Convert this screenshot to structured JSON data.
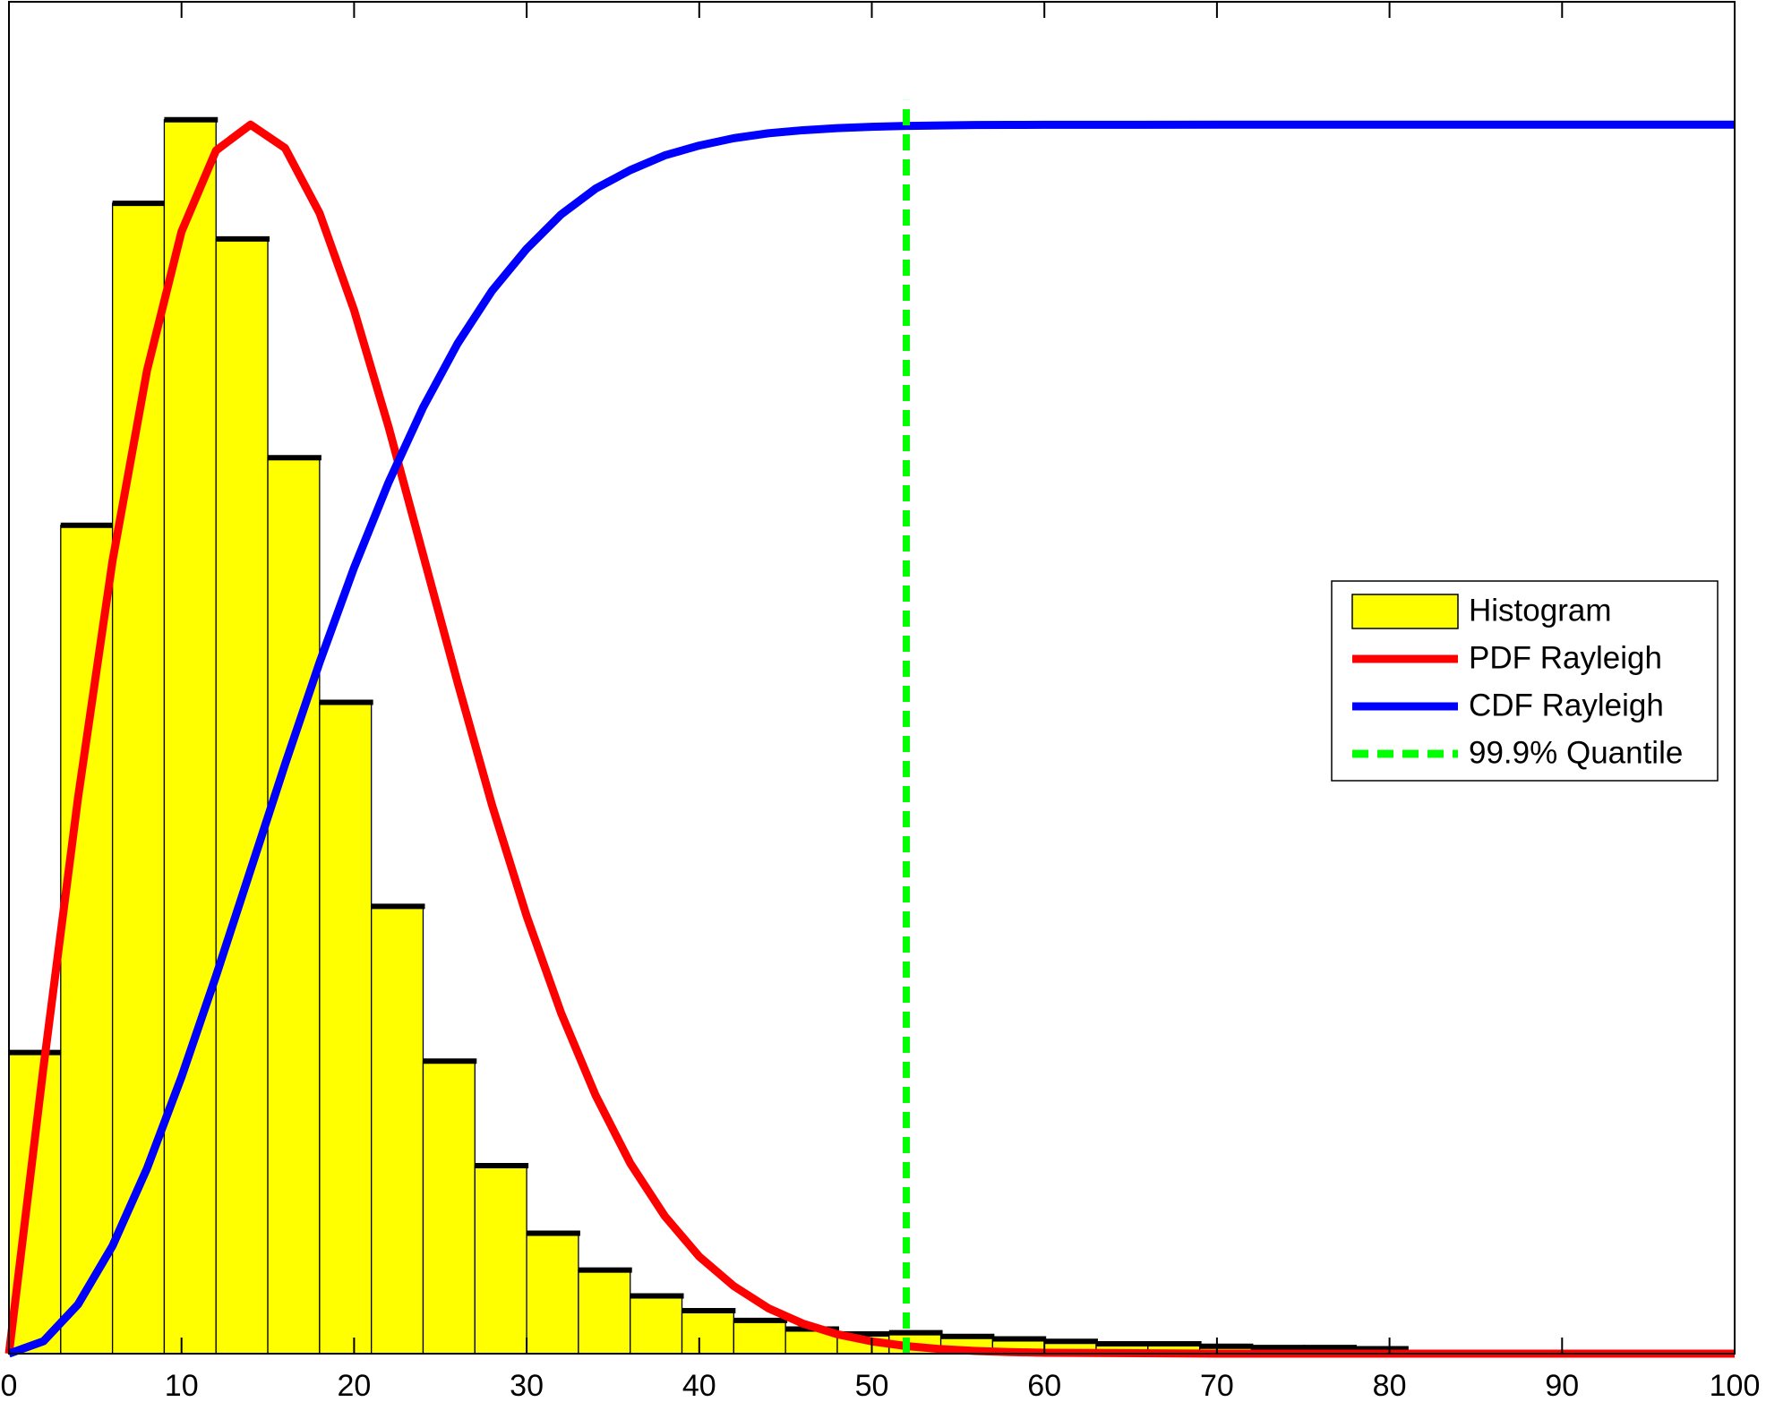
{
  "chart_data": {
    "type": "histogram",
    "name": "Histogram",
    "color": "#ffff00",
    "bins": [
      0,
      3,
      6,
      9,
      12,
      15,
      18,
      21,
      24,
      27,
      30,
      33,
      36,
      39,
      42,
      45,
      48,
      51,
      54,
      57,
      60,
      63,
      66,
      69,
      72,
      75,
      78,
      81
    ],
    "counts": [
      0.245,
      0.674,
      0.936,
      1.004,
      0.907,
      0.729,
      0.53,
      0.364,
      0.238,
      0.153,
      0.098,
      0.068,
      0.047,
      0.035,
      0.027,
      0.02,
      0.016,
      0.017,
      0.014,
      0.012,
      0.01,
      0.008,
      0.008,
      0.006,
      0.005,
      0.005,
      0.004
    ],
    "series": [
      {
        "name": "PDF Rayleigh",
        "color": "#ff0000",
        "x": [
          0,
          2,
          4,
          6,
          8,
          10,
          12,
          14,
          16,
          18,
          20,
          22,
          24,
          26,
          28,
          30,
          32,
          34,
          36,
          38,
          40,
          42,
          44,
          46,
          48,
          50,
          52,
          54,
          56,
          58,
          60,
          70,
          80,
          90,
          100
        ],
        "values": [
          0,
          0.233,
          0.452,
          0.645,
          0.8,
          0.913,
          0.979,
          1.0,
          0.981,
          0.928,
          0.849,
          0.754,
          0.65,
          0.546,
          0.446,
          0.356,
          0.277,
          0.21,
          0.155,
          0.112,
          0.079,
          0.055,
          0.037,
          0.0245,
          0.0158,
          0.01,
          0.0062,
          0.0037,
          0.0022,
          0.0013,
          0.0007,
          0,
          0,
          0,
          0
        ]
      },
      {
        "name": "CDF Rayleigh",
        "color": "#0000ff",
        "x": [
          0,
          2,
          4,
          6,
          8,
          10,
          12,
          14,
          16,
          18,
          20,
          22,
          24,
          26,
          28,
          30,
          32,
          34,
          36,
          38,
          40,
          42,
          44,
          46,
          48,
          50,
          52,
          54,
          56,
          58,
          60,
          70,
          80,
          90,
          100
        ],
        "values": [
          0,
          0.0101,
          0.04,
          0.0877,
          0.1507,
          0.2252,
          0.3074,
          0.3935,
          0.4796,
          0.5624,
          0.6396,
          0.709,
          0.77,
          0.822,
          0.865,
          0.899,
          0.927,
          0.948,
          0.963,
          0.975,
          0.983,
          0.989,
          0.993,
          0.9955,
          0.9972,
          0.9983,
          0.999,
          0.9994,
          0.9997,
          0.9998,
          0.9999,
          1,
          1,
          1,
          1
        ]
      },
      {
        "name": "99.9% Quantile",
        "color": "#00ff00",
        "dashed": true,
        "x": [
          52,
          52
        ],
        "values": [
          0,
          1.02
        ]
      }
    ],
    "xlim": [
      0,
      100
    ],
    "xticks": [
      0,
      10,
      20,
      30,
      40,
      50,
      60,
      70,
      80,
      90,
      100
    ],
    "ylim": [
      0,
      1.1
    ],
    "legend": "east"
  }
}
